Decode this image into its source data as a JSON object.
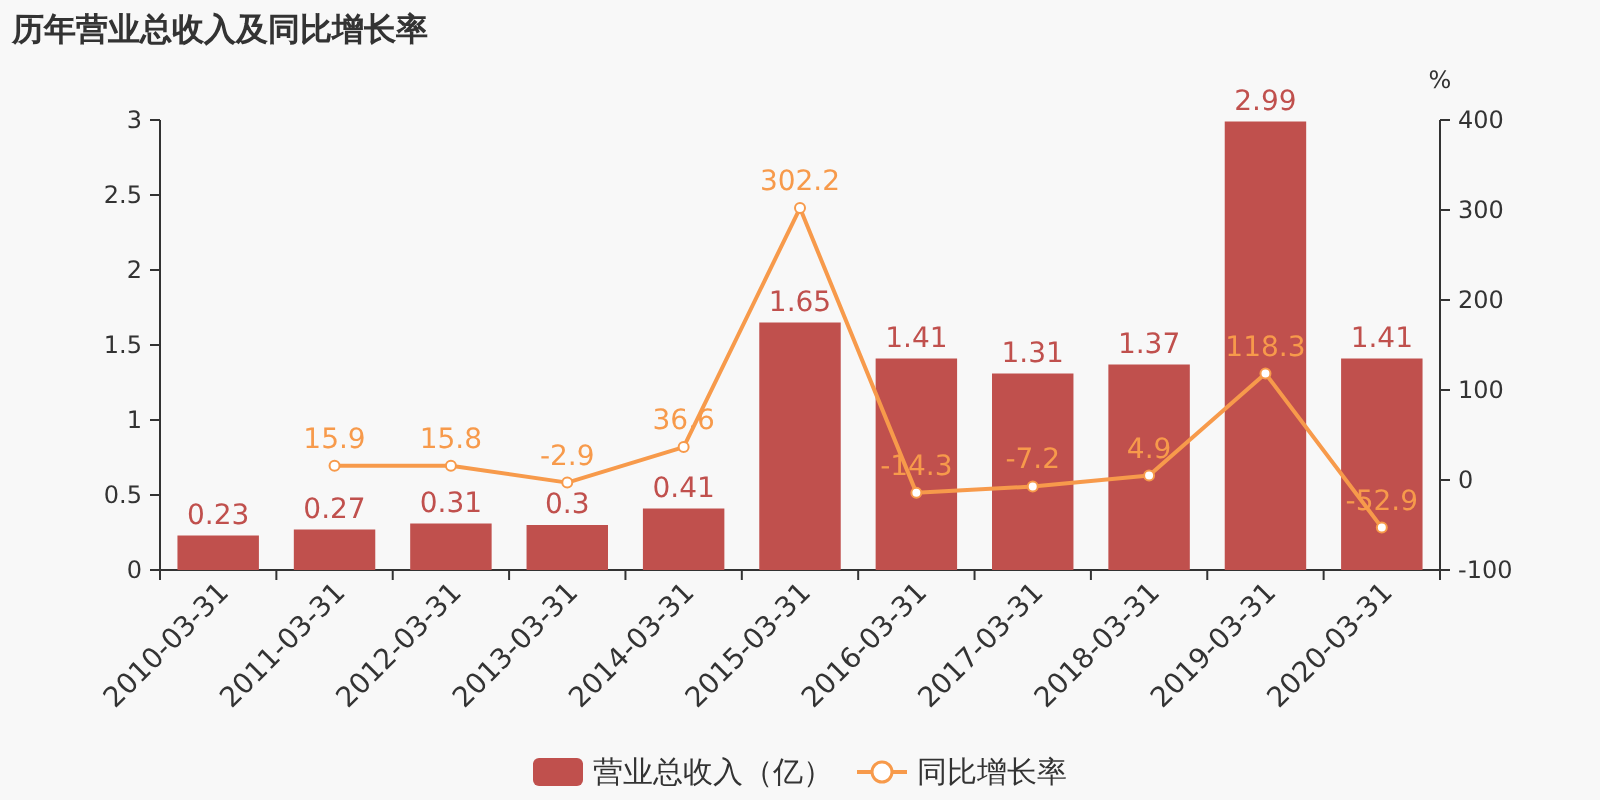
{
  "chart_data": {
    "type": "bar",
    "title": "历年营业总收入及同比增长率",
    "categories": [
      "2010-03-31",
      "2011-03-31",
      "2012-03-31",
      "2013-03-31",
      "2014-03-31",
      "2015-03-31",
      "2016-03-31",
      "2017-03-31",
      "2018-03-31",
      "2019-03-31",
      "2020-03-31"
    ],
    "series": [
      {
        "name": "营业总收入（亿）",
        "color": "#c0504d",
        "values": [
          0.23,
          0.27,
          0.31,
          0.3,
          0.41,
          1.65,
          1.41,
          1.31,
          1.37,
          2.99,
          1.41
        ]
      },
      {
        "name": "同比增长率",
        "type": "line",
        "axis": "y2",
        "color": "#f79a4b",
        "values": [
          null,
          15.9,
          15.8,
          -2.9,
          36.6,
          302.2,
          -14.3,
          -7.2,
          4.9,
          118.3,
          -52.9
        ]
      }
    ],
    "ylim": [
      0,
      3
    ],
    "yticks": [
      0,
      0.5,
      1,
      1.5,
      2,
      2.5,
      3
    ],
    "y2lim": [
      -100,
      400
    ],
    "y2ticks": [
      -100,
      0,
      100,
      200,
      300,
      400
    ],
    "y2label": "%",
    "data_labels": true,
    "legend": "bottom",
    "marker": "circle"
  }
}
